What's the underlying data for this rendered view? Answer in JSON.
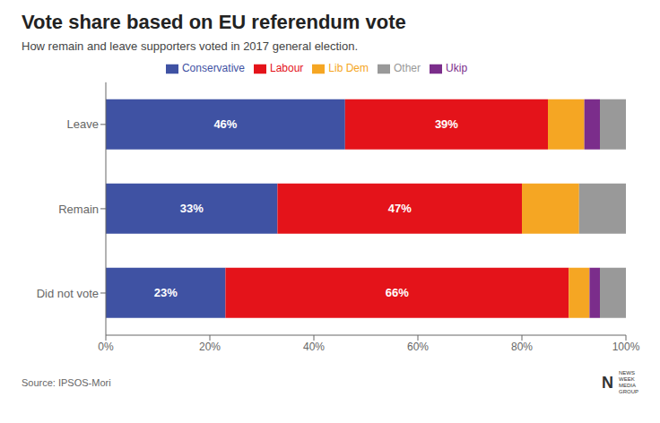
{
  "chart_data": {
    "type": "bar",
    "orientation": "horizontal",
    "stacked": true,
    "title": "Vote share based on EU referendum vote",
    "subtitle": "How remain and leave supporters voted in 2017 general election.",
    "annotations": [
      "Source: IPSOS-Mori",
      "N",
      "NEWS\nWEEK\nMEDIA\nGROUP"
    ],
    "categories": [
      "Leave",
      "Remain",
      "Did not vote"
    ],
    "series": [
      {
        "name": "Conservative",
        "color": "#3F52A3",
        "values": [
          46,
          33,
          23
        ],
        "value_labels": [
          "46%",
          "33%",
          "23%"
        ]
      },
      {
        "name": "Labour",
        "color": "#E4131A",
        "values": [
          39,
          47,
          66
        ],
        "value_labels": [
          "39%",
          "47%",
          "66%"
        ]
      },
      {
        "name": "Lib Dem",
        "color": "#F5A623",
        "values": [
          7,
          11,
          4
        ]
      },
      {
        "name": "Ukip",
        "color": "#7B2D8B",
        "values": [
          3,
          0,
          2
        ]
      },
      {
        "name": "Other",
        "color": "#999999",
        "values": [
          5,
          9,
          5
        ]
      }
    ],
    "xlim": [
      0,
      100
    ],
    "xticks": [
      {
        "value": 0,
        "label": "0%"
      },
      {
        "value": 20,
        "label": "20%"
      },
      {
        "value": 40,
        "label": "40%"
      },
      {
        "value": 60,
        "label": "60%"
      },
      {
        "value": 80,
        "label": "80%"
      },
      {
        "value": 100,
        "label": "100%"
      }
    ],
    "grid": false,
    "legend": "top"
  }
}
